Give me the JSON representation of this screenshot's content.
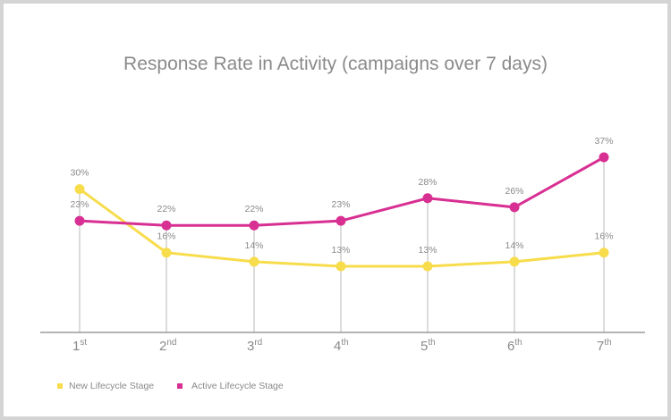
{
  "chart_data": {
    "type": "line",
    "title": "Response Rate in Activity (campaigns over 7 days)",
    "categories": [
      {
        "num": "1",
        "sup": "st"
      },
      {
        "num": "2",
        "sup": "nd"
      },
      {
        "num": "3",
        "sup": "rd"
      },
      {
        "num": "4",
        "sup": "th"
      },
      {
        "num": "5",
        "sup": "th"
      },
      {
        "num": "6",
        "sup": "th"
      },
      {
        "num": "7",
        "sup": "th"
      }
    ],
    "series": [
      {
        "name": "New Lifecycle Stage",
        "color": "#f7dc4b",
        "values": [
          30,
          16,
          14,
          13,
          13,
          14,
          16
        ]
      },
      {
        "name": "Active Lifecycle Stage",
        "color": "#d82f92",
        "values": [
          23,
          22,
          22,
          23,
          28,
          26,
          37
        ]
      }
    ],
    "value_suffix": "%",
    "ylim": [
      0,
      40
    ],
    "grid": false,
    "drop_lines": true,
    "legend_position": "bottom-left"
  }
}
